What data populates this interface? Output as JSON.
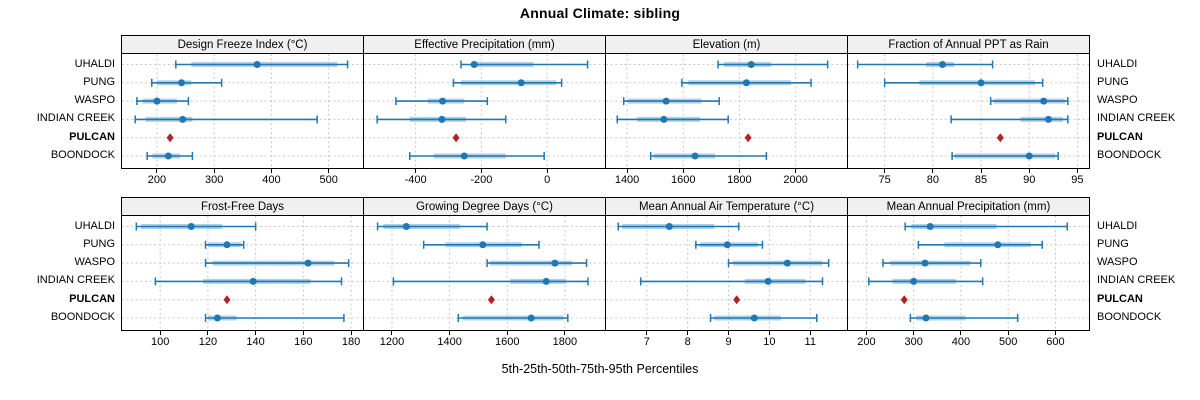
{
  "title": "Annual Climate: sibling",
  "xlabel": "5th-25th-50th-75th-95th Percentiles",
  "sites": [
    "UHALDI",
    "PUNG",
    "WASPO",
    "INDIAN CREEK",
    "PULCAN",
    "BOONDOCK"
  ],
  "highlight_site": "PULCAN",
  "colors": {
    "line": "#1f77b4",
    "band": "rgba(31,119,180,0.35)",
    "highlight": "#b22222",
    "grid": "#c8c8c8",
    "strip_bg": "#f0f0f0",
    "border": "#000000"
  },
  "chart_data": {
    "type": "interval",
    "percentiles": [
      5,
      25,
      50,
      75,
      95
    ],
    "legend_note": "blue line = 5th-95th, thick band = 25th-75th, dot = median, red diamond = single value for highlighted series",
    "panels": [
      {
        "title": "Design Freeze Index (°C)",
        "ticks": [
          200,
          300,
          400,
          500
        ],
        "range": [
          139,
          560
        ],
        "rows": [
          {
            "site": "UHALDI",
            "p": [
              233,
              260,
              375,
              515,
              533
            ]
          },
          {
            "site": "PUNG",
            "p": [
              191,
              200,
              243,
              260,
              313
            ]
          },
          {
            "site": "WASPO",
            "p": [
              165,
              175,
              200,
              235,
              255
            ]
          },
          {
            "site": "INDIAN CREEK",
            "p": [
              162,
              180,
              245,
              262,
              480
            ]
          },
          {
            "site": "PULCAN",
            "value": 223
          },
          {
            "site": "BOONDOCK",
            "p": [
              183,
              192,
              220,
              240,
              262
            ]
          }
        ]
      },
      {
        "title": "Effective Precipitation (mm)",
        "ticks": [
          -400,
          -200,
          0
        ],
        "range": [
          -557,
          176
        ],
        "rows": [
          {
            "site": "UHALDI",
            "p": [
              -262,
              -230,
              -222,
              -41,
              123
            ]
          },
          {
            "site": "PUNG",
            "p": [
              -285,
              -262,
              -79,
              28,
              44
            ]
          },
          {
            "site": "WASPO",
            "p": [
              -460,
              -363,
              -318,
              -252,
              -182
            ]
          },
          {
            "site": "INDIAN CREEK",
            "p": [
              -517,
              -418,
              -320,
              -247,
              -126
            ]
          },
          {
            "site": "PULCAN",
            "value": -277
          },
          {
            "site": "BOONDOCK",
            "p": [
              -418,
              -345,
              -252,
              -126,
              -9
            ]
          }
        ]
      },
      {
        "title": "Elevation (m)",
        "ticks": [
          1400,
          1600,
          1800,
          2000
        ],
        "range": [
          1325,
          2183
        ],
        "rows": [
          {
            "site": "UHALDI",
            "p": [
              1724,
              1745,
              1842,
              1913,
              2114
            ]
          },
          {
            "site": "PUNG",
            "p": [
              1595,
              1618,
              1825,
              1984,
              2055
            ]
          },
          {
            "site": "WASPO",
            "p": [
              1388,
              1402,
              1539,
              1665,
              1728
            ]
          },
          {
            "site": "INDIAN CREEK",
            "p": [
              1365,
              1435,
              1531,
              1660,
              1760
            ]
          },
          {
            "site": "PULCAN",
            "value": 1831
          },
          {
            "site": "BOONDOCK",
            "p": [
              1484,
              1495,
              1642,
              1713,
              1896
            ]
          }
        ]
      },
      {
        "title": "Fraction of Annual PPT as Rain",
        "ticks": [
          75,
          80,
          85,
          90,
          95
        ],
        "range": [
          71.2,
          96.2
        ],
        "rows": [
          {
            "site": "UHALDI",
            "p": [
              72.2,
              79.3,
              81,
              82.2,
              86.2
            ]
          },
          {
            "site": "PUNG",
            "p": [
              75,
              78.6,
              85,
              90.6,
              91.4
            ]
          },
          {
            "site": "WASPO",
            "p": [
              86,
              86.3,
              91.5,
              93.7,
              94
            ]
          },
          {
            "site": "INDIAN CREEK",
            "p": [
              81.9,
              89.1,
              92,
              93.5,
              94
            ]
          },
          {
            "site": "PULCAN",
            "value": 87
          },
          {
            "site": "BOONDOCK",
            "p": [
              82,
              82.3,
              90,
              92.7,
              93
            ]
          }
        ]
      },
      {
        "title": "Frost-Free Days",
        "ticks": [
          100,
          120,
          140,
          160,
          180
        ],
        "range": [
          84,
          185
        ],
        "rows": [
          {
            "site": "UHALDI",
            "p": [
              90,
              92,
              113,
              126,
              140
            ]
          },
          {
            "site": "PUNG",
            "p": [
              119,
              120,
              128,
              134,
              135
            ]
          },
          {
            "site": "WASPO",
            "p": [
              119,
              122,
              162,
              173,
              179
            ]
          },
          {
            "site": "INDIAN CREEK",
            "p": [
              98,
              118,
              139,
              163,
              176
            ]
          },
          {
            "site": "PULCAN",
            "value": 128
          },
          {
            "site": "BOONDOCK",
            "p": [
              119,
              120,
              124,
              132,
              177
            ]
          }
        ]
      },
      {
        "title": "Growing Degree Days (°C)",
        "ticks": [
          1200,
          1400,
          1600,
          1800
        ],
        "range": [
          1103,
          1939
        ],
        "rows": [
          {
            "site": "UHALDI",
            "p": [
              1150,
              1170,
              1250,
              1435,
              1530
            ]
          },
          {
            "site": "PUNG",
            "p": [
              1310,
              1385,
              1515,
              1650,
              1710
            ]
          },
          {
            "site": "WASPO",
            "p": [
              1530,
              1540,
              1765,
              1825,
              1875
            ]
          },
          {
            "site": "INDIAN CREEK",
            "p": [
              1205,
              1610,
              1735,
              1805,
              1880
            ]
          },
          {
            "site": "PULCAN",
            "value": 1545
          },
          {
            "site": "BOONDOCK",
            "p": [
              1430,
              1445,
              1683,
              1795,
              1810
            ]
          }
        ]
      },
      {
        "title": "Mean Annual Air Temperature (°C)",
        "ticks": [
          7,
          8,
          9,
          10,
          11
        ],
        "range": [
          6.0,
          11.9
        ],
        "rows": [
          {
            "site": "UHALDI",
            "p": [
              6.3,
              6.4,
              7.55,
              8.65,
              9.25
            ]
          },
          {
            "site": "PUNG",
            "p": [
              8.2,
              8.3,
              8.97,
              9.72,
              9.83
            ]
          },
          {
            "site": "WASPO",
            "p": [
              9.0,
              9.1,
              10.44,
              11.3,
              11.45
            ]
          },
          {
            "site": "INDIAN CREEK",
            "p": [
              6.85,
              9.4,
              9.97,
              10.88,
              11.3
            ]
          },
          {
            "site": "PULCAN",
            "value": 9.2
          },
          {
            "site": "BOONDOCK",
            "p": [
              8.56,
              8.65,
              9.63,
              10.28,
              11.16
            ]
          }
        ]
      },
      {
        "title": "Mean Annual Precipitation (mm)",
        "ticks": [
          200,
          300,
          400,
          500,
          600
        ],
        "range": [
          161,
          671
        ],
        "rows": [
          {
            "site": "UHALDI",
            "p": [
              282,
              295,
              335,
              475,
              625
            ]
          },
          {
            "site": "PUNG",
            "p": [
              310,
              365,
              478,
              548,
              572
            ]
          },
          {
            "site": "WASPO",
            "p": [
              235,
              250,
              324,
              420,
              442
            ]
          },
          {
            "site": "INDIAN CREEK",
            "p": [
              205,
              255,
              300,
              390,
              446
            ]
          },
          {
            "site": "PULCAN",
            "value": 280
          },
          {
            "site": "BOONDOCK",
            "p": [
              293,
              305,
              326,
              410,
              520
            ]
          }
        ]
      }
    ]
  }
}
